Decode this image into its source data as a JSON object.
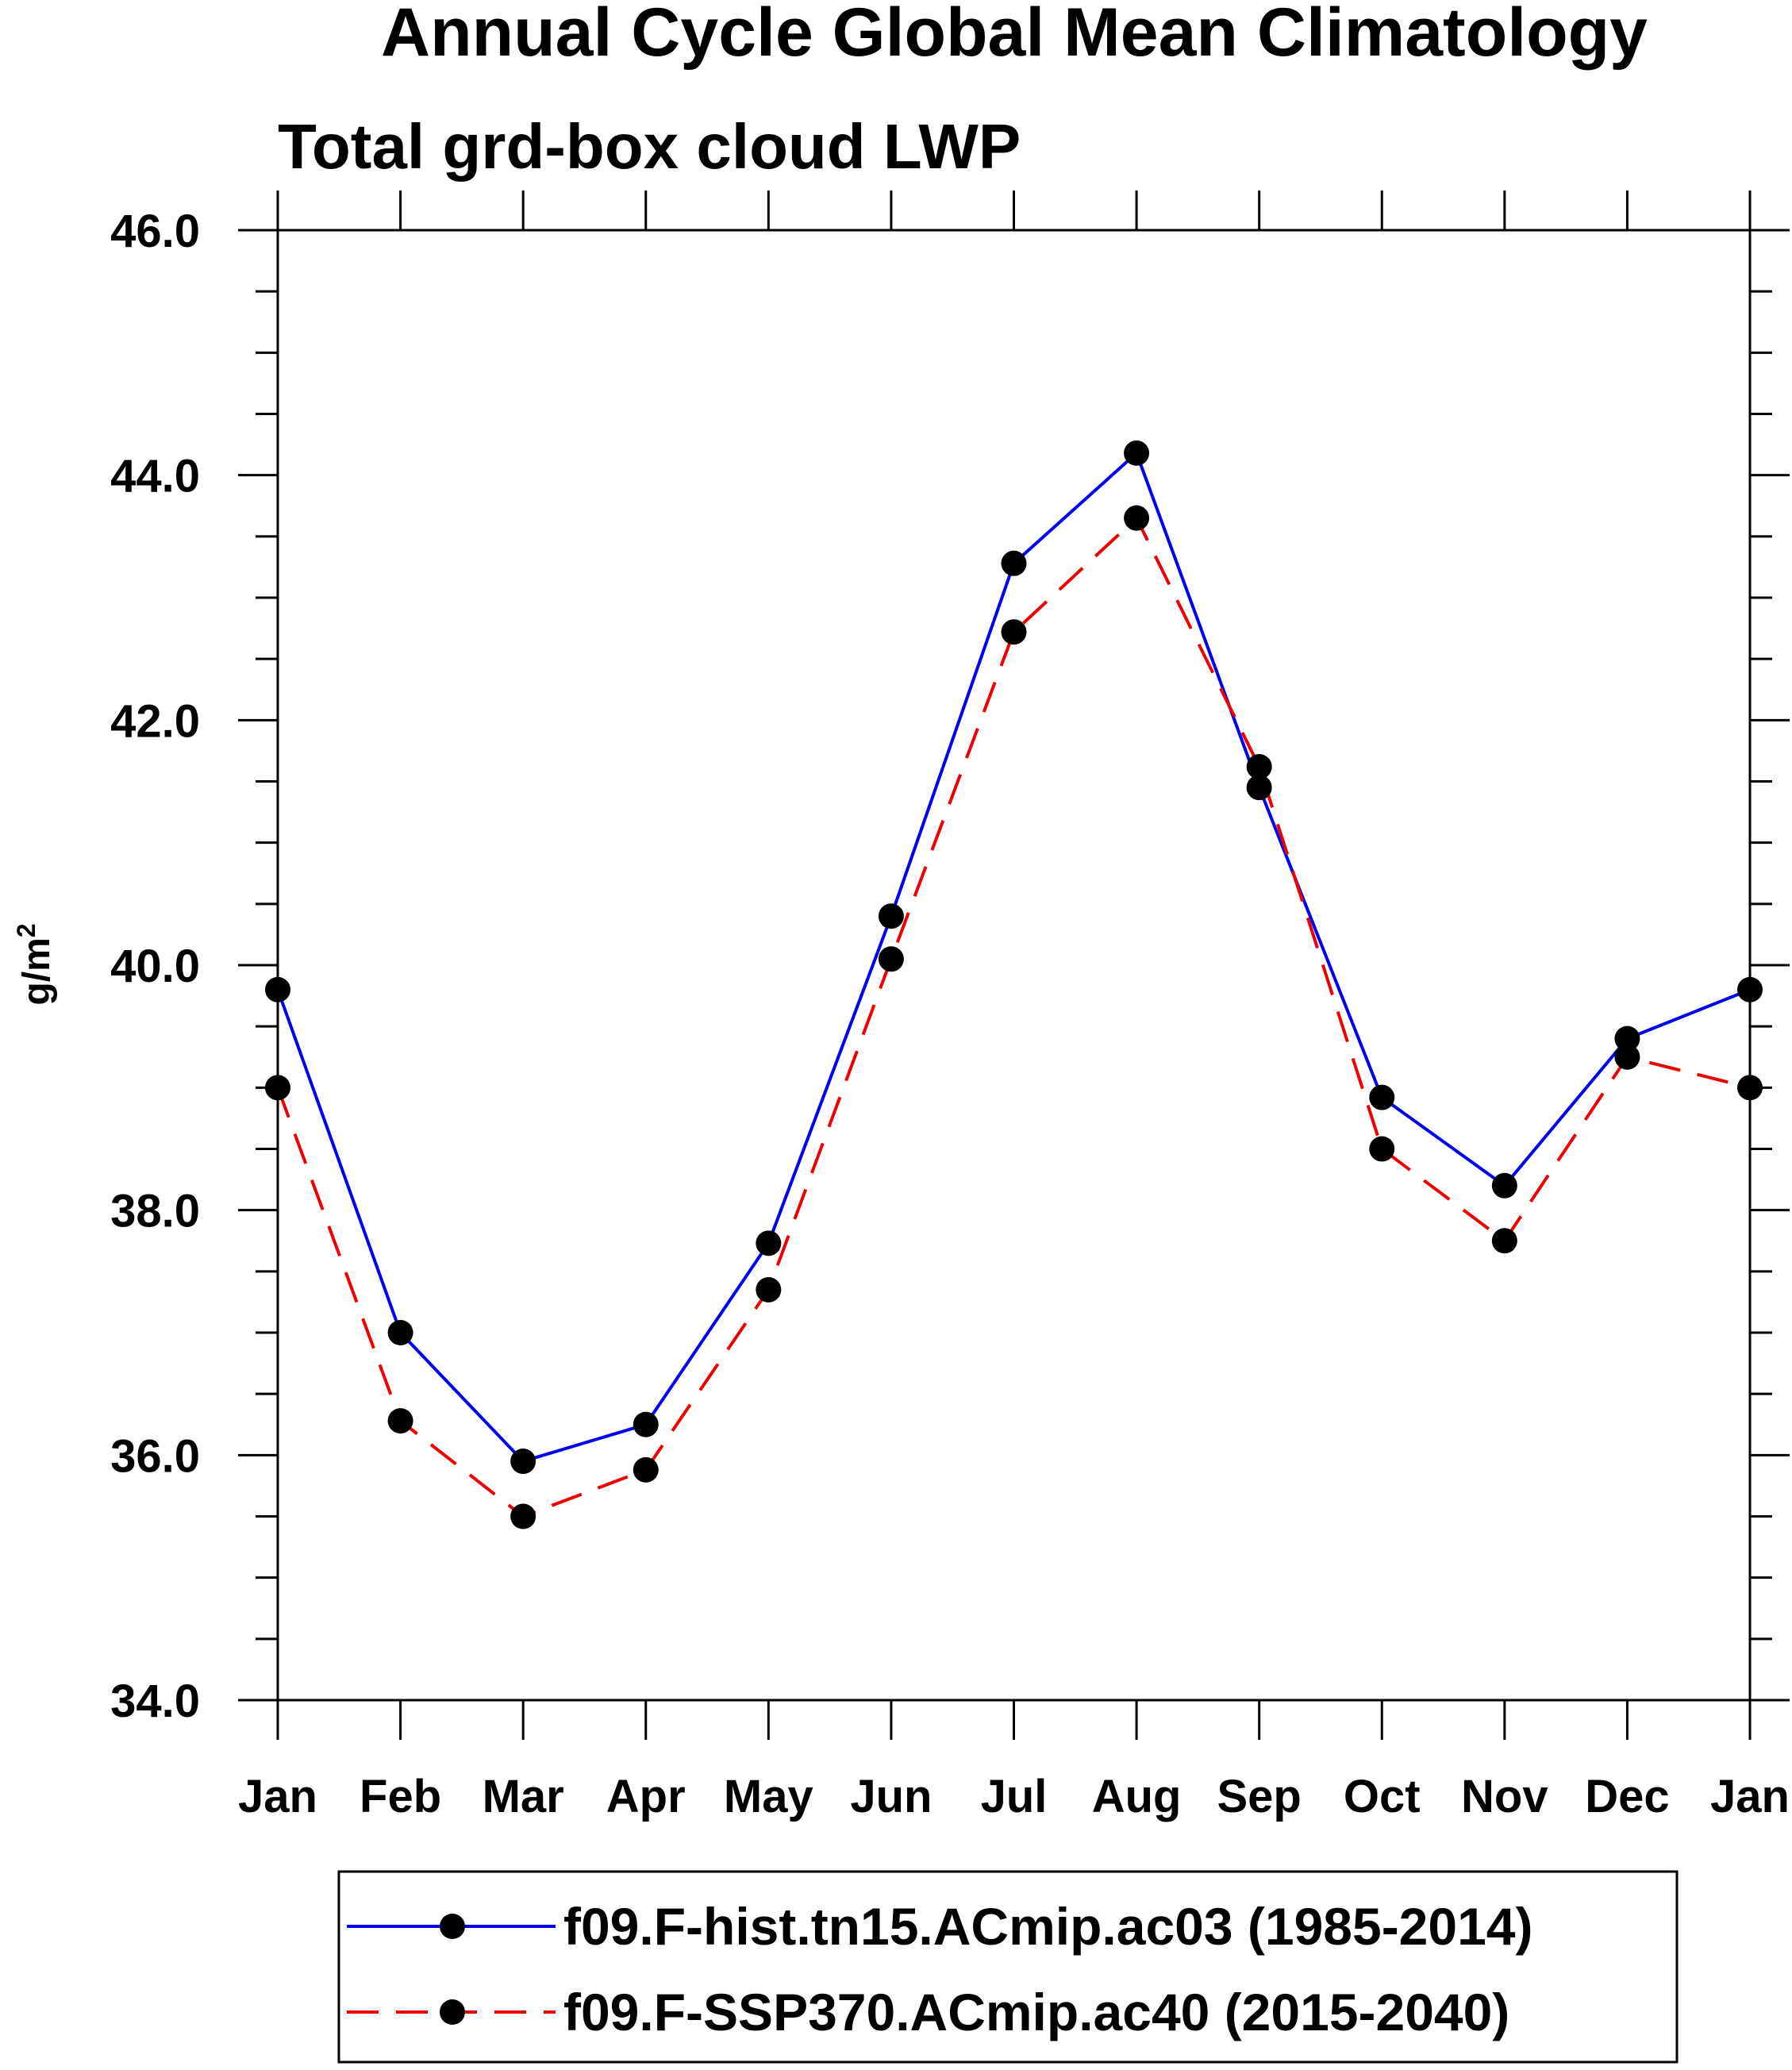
{
  "chart_data": {
    "type": "line",
    "title": "Annual Cycle Global Mean Climatology",
    "subtitle": "Total grd-box cloud LWP",
    "ylabel_base": "g/m",
    "ylabel_sup": "2",
    "categories": [
      "Jan",
      "Feb",
      "Mar",
      "Apr",
      "May",
      "Jun",
      "Jul",
      "Aug",
      "Sep",
      "Oct",
      "Nov",
      "Dec",
      "Jan"
    ],
    "ylim": [
      34.0,
      46.0
    ],
    "yticks": [
      "34.0",
      "36.0",
      "38.0",
      "40.0",
      "42.0",
      "44.0",
      "46.0"
    ],
    "grid": false,
    "legend_position": "bottom",
    "series": [
      {
        "name": "f09.F-hist.tn15.ACmip.ac03 (1985-2014)",
        "color": "#0000ee",
        "dash": "solid",
        "marker": "filled-circle",
        "values": [
          39.8,
          37.0,
          35.95,
          36.25,
          37.73,
          40.4,
          43.28,
          44.18,
          41.45,
          38.92,
          38.2,
          39.4,
          39.8
        ]
      },
      {
        "name": "f09.F-SSP370.ACmip.ac40 (2015-2040)",
        "color": "#ee0000",
        "dash": "dashed",
        "marker": "filled-circle",
        "values": [
          39.0,
          36.28,
          35.5,
          35.88,
          37.35,
          40.05,
          42.72,
          43.65,
          41.62,
          38.5,
          37.75,
          39.25,
          39.0
        ]
      }
    ]
  }
}
